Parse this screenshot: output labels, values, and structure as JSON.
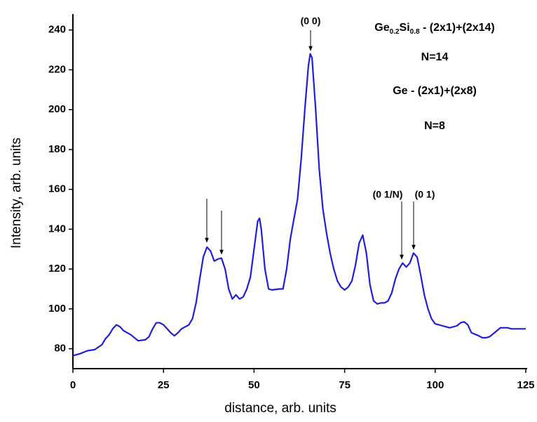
{
  "chart_data": {
    "type": "line",
    "xlabel": "distance, arb. units",
    "ylabel": "Intensity, arb. units",
    "x": [
      0,
      2,
      4,
      6,
      8,
      9,
      10,
      11,
      12,
      13,
      14,
      16,
      18,
      20,
      21,
      22,
      23,
      24,
      25,
      26,
      27,
      28,
      29,
      30,
      32,
      33,
      34,
      35,
      36,
      37,
      38,
      39,
      40,
      41,
      42,
      43,
      44,
      45,
      46,
      47,
      48,
      49,
      50,
      51,
      51.5,
      52,
      53,
      54,
      55,
      57,
      58,
      59,
      60,
      61,
      62,
      63,
      64,
      65,
      65.5,
      66,
      67,
      68,
      69,
      70,
      71,
      72,
      73,
      74,
      75,
      76,
      77,
      78,
      79,
      80,
      81,
      82,
      83,
      84,
      85,
      86,
      87,
      88,
      89,
      90,
      91,
      92,
      93,
      94,
      95,
      96,
      97,
      98,
      99,
      100,
      101,
      102,
      103,
      104,
      106,
      107,
      108,
      109,
      110,
      112,
      113,
      114,
      115,
      117,
      118,
      120,
      121,
      125
    ],
    "series": [
      {
        "color": "#1f1fd6",
        "values": [
          76.5,
          77.5,
          79,
          79.5,
          82,
          85,
          87,
          90,
          92,
          91,
          89,
          87,
          84,
          84.5,
          86,
          90,
          93,
          93,
          92,
          90,
          88,
          86.5,
          88,
          90,
          92,
          95,
          103,
          115,
          126,
          131,
          129,
          124,
          125,
          125.5,
          120,
          110,
          105,
          107,
          105,
          106,
          110,
          116,
          130,
          144,
          145.5,
          140,
          120,
          110,
          109.5,
          110,
          110,
          120,
          135,
          145,
          155,
          175,
          200,
          222,
          228,
          226,
          200,
          170,
          150,
          138,
          128,
          120,
          114,
          111,
          109.5,
          111,
          114,
          122,
          133,
          137,
          128,
          112,
          104,
          102.5,
          103,
          103,
          104,
          108,
          115,
          120,
          123,
          121,
          123,
          128,
          126,
          117,
          107,
          100,
          95,
          92.5,
          92,
          91.5,
          91,
          90.5,
          91.5,
          93,
          93.5,
          92,
          88,
          86.5,
          85.5,
          85.5,
          86,
          89,
          90.5,
          90.5,
          90,
          90
        ]
      }
    ],
    "xlim": [
      0,
      125
    ],
    "xticks": [
      0,
      25,
      50,
      75,
      100,
      125
    ],
    "ylim": [
      70,
      248
    ],
    "yticks": [
      80,
      100,
      120,
      140,
      160,
      180,
      200,
      220,
      240
    ],
    "annotations": [
      "(0 0)",
      "(0 1/N)",
      "(0 1)"
    ],
    "info": {
      "line1": [
        "Ge",
        "0.2",
        "Si",
        "0.8",
        " - (2x1)+(2x14)"
      ],
      "line2": "N=14",
      "line3": "Ge - (2x1)+(2x8)",
      "line4": "N=8"
    }
  }
}
